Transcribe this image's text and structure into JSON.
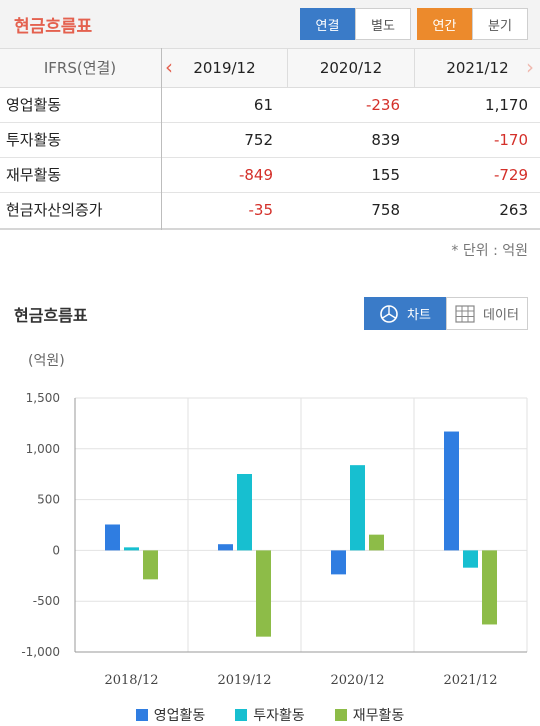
{
  "header": {
    "title": "현금흐름표",
    "toggle_group1": [
      "연결",
      "별도"
    ],
    "toggle_group2": [
      "연간",
      "분기"
    ]
  },
  "table": {
    "corner_label": "IFRS(연결)",
    "columns": [
      "2019/12",
      "2020/12",
      "2021/12"
    ],
    "rows": [
      {
        "name": "영업활동",
        "values": [
          "61",
          "-236",
          "1,170"
        ]
      },
      {
        "name": "투자활동",
        "values": [
          "752",
          "839",
          "-170"
        ]
      },
      {
        "name": "재무활동",
        "values": [
          "-849",
          "155",
          "-729"
        ]
      },
      {
        "name": "현금자산의증가",
        "values": [
          "-35",
          "758",
          "263"
        ]
      }
    ],
    "unit_note": "* 단위 : 억원"
  },
  "chart_section": {
    "title": "현금흐름표",
    "chart_toggle": "차트",
    "data_toggle": "데이터",
    "unit_label": "(억원)"
  },
  "colors": {
    "accent_red": "#e4614f",
    "blue_active": "#3a7bc8",
    "orange_active": "#ec8a2c",
    "negative": "#d4302a"
  },
  "chart_data": {
    "type": "bar",
    "categories": [
      "2018/12",
      "2019/12",
      "2020/12",
      "2021/12"
    ],
    "series": [
      {
        "name": "영업활동",
        "color": "#2f7de1",
        "values": [
          255,
          61,
          -236,
          1170
        ]
      },
      {
        "name": "투자활동",
        "color": "#17bfd0",
        "values": [
          30,
          752,
          839,
          -170
        ]
      },
      {
        "name": "재무활동",
        "color": "#8dbc48",
        "values": [
          -285,
          -849,
          155,
          -729
        ]
      }
    ],
    "y_ticks": [
      "1,500",
      "1,000",
      "500",
      "0",
      "-500",
      "-1,000"
    ],
    "ylim": [
      -1000,
      1500
    ],
    "grid": true,
    "legend": "bottom"
  }
}
